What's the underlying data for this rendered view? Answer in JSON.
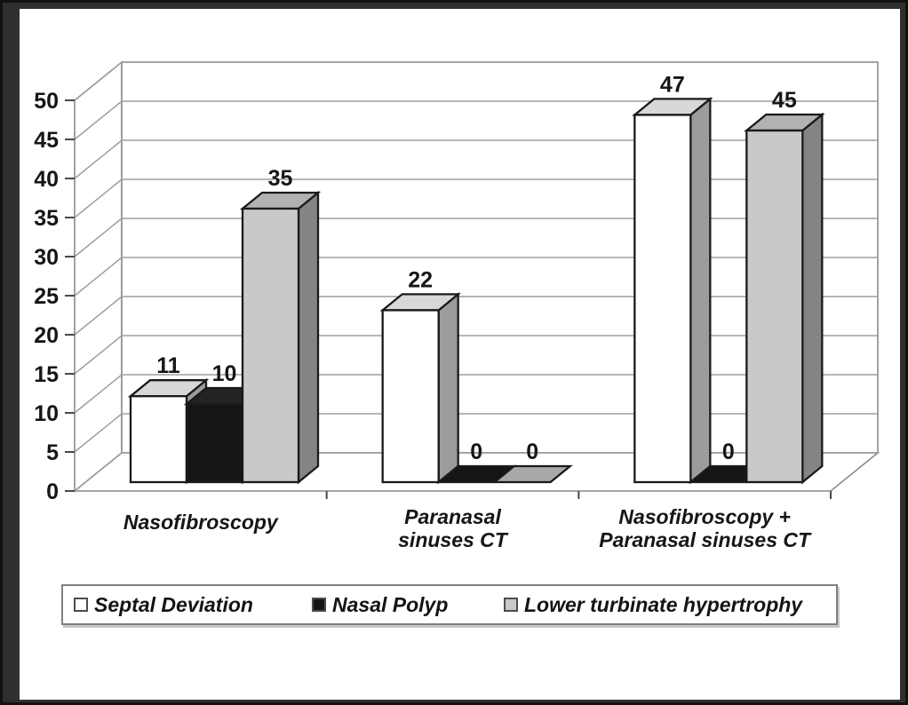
{
  "figure": {
    "background_color": "#2f2f2f",
    "panel_color": "#ffffff",
    "title": ""
  },
  "chart_data": {
    "type": "bar",
    "projection": "3d-clustered-column",
    "categories": [
      "Nasofibroscopy",
      "Paranasal sinuses CT",
      "Nasofibroscopy + Paranasal sinuses CT"
    ],
    "category_label_lines": [
      [
        "Nasofibroscopy"
      ],
      [
        "Paranasal",
        "sinuses CT"
      ],
      [
        "Nasofibroscopy +",
        "Paranasal sinuses CT"
      ]
    ],
    "series": [
      {
        "name": "Septal Deviation",
        "values": [
          11,
          22,
          47
        ],
        "color_front": "#ffffff",
        "color_top": "#d8d8d8",
        "color_side": "#9c9c9c",
        "color_flat": "#e6e6e6"
      },
      {
        "name": "Nasal Polyp",
        "values": [
          10,
          0,
          0
        ],
        "color_front": "#151515",
        "color_top": "#232323",
        "color_side": "#060606",
        "color_flat": "#151515"
      },
      {
        "name": "Lower turbinate hypertrophy",
        "values": [
          35,
          0,
          45
        ],
        "color_front": "#c9c9c9",
        "color_top": "#b2b2b2",
        "color_side": "#848484",
        "color_flat": "#a8a8a8"
      }
    ],
    "ylim": [
      0,
      50
    ],
    "yticks": [
      0,
      5,
      10,
      15,
      20,
      25,
      30,
      35,
      40,
      45,
      50
    ],
    "grid": true,
    "legend_position": "bottom",
    "gridline_color": "#9e9e9e",
    "wall_edge_color": "#8b8b8b",
    "tick_color": "#4a4a4a",
    "bar_outline_color": "#1a1a1a",
    "text_color": "#161616"
  }
}
